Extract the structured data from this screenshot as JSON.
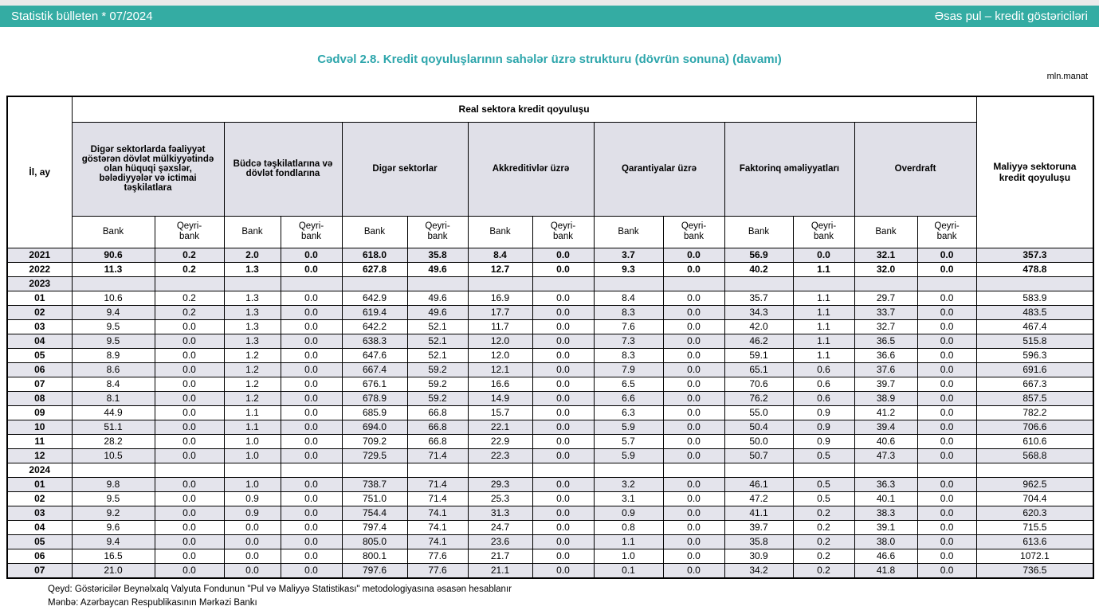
{
  "header_bar": {
    "left": "Statistik bülleten * 07/2024",
    "right": "Əsas pul – kredit göstəriciləri"
  },
  "title": "Cədvəl 2.8. Kredit qoyuluşlarının sahələr üzrə strukturu (dövrün sonuna) (davamı)",
  "unit_label": "mln.manat",
  "colors": {
    "bar_bg": "#34aca3",
    "title_color": "#2ea6ac",
    "row_alt_bg": "#e4e4ec",
    "group_bg": "#e0e0e8",
    "top_strip_bg": "#eaeaea"
  },
  "table": {
    "row_header": "İl, ay",
    "top_header": "Real sektora kredit qoyuluşu",
    "last_column": "Maliyyə sektoruna kredit qoyuluşu",
    "groups": [
      "Digər sektorlarda fəaliyyət göstərən dövlət mülkiyyətində olan hüquqi şəxslər, bələdiyyələr və ictimai təşkilatlara",
      "Büdcə təşkilatlarına və dövlət fondlarına",
      "Digər sektorlar",
      "Akkreditivlər üzrə",
      "Qarantiyalar üzrə",
      "Faktorinq əməliyyatları",
      "Overdraft"
    ],
    "subheaders": {
      "bank": "Bank",
      "nonbank": "Qeyri-\nbank"
    },
    "rows": [
      {
        "label": "2021",
        "type": "year",
        "values": [
          "90.6",
          "0.2",
          "2.0",
          "0.0",
          "618.0",
          "35.8",
          "8.4",
          "0.0",
          "3.7",
          "0.0",
          "56.9",
          "0.0",
          "32.1",
          "0.0",
          "357.3"
        ]
      },
      {
        "label": "2022",
        "type": "year",
        "values": [
          "11.3",
          "0.2",
          "1.3",
          "0.0",
          "627.8",
          "49.6",
          "12.7",
          "0.0",
          "9.3",
          "0.0",
          "40.2",
          "1.1",
          "32.0",
          "0.0",
          "478.8"
        ]
      },
      {
        "label": "2023",
        "type": "section",
        "values": [
          "",
          "",
          "",
          "",
          "",
          "",
          "",
          "",
          "",
          "",
          "",
          "",
          "",
          "",
          ""
        ]
      },
      {
        "label": "01",
        "type": "month",
        "values": [
          "10.6",
          "0.2",
          "1.3",
          "0.0",
          "642.9",
          "49.6",
          "16.9",
          "0.0",
          "8.4",
          "0.0",
          "35.7",
          "1.1",
          "29.7",
          "0.0",
          "583.9"
        ]
      },
      {
        "label": "02",
        "type": "month",
        "values": [
          "9.4",
          "0.2",
          "1.3",
          "0.0",
          "619.4",
          "49.6",
          "17.7",
          "0.0",
          "8.3",
          "0.0",
          "34.3",
          "1.1",
          "33.7",
          "0.0",
          "483.5"
        ]
      },
      {
        "label": "03",
        "type": "month",
        "values": [
          "9.5",
          "0.0",
          "1.3",
          "0.0",
          "642.2",
          "52.1",
          "11.7",
          "0.0",
          "7.6",
          "0.0",
          "42.0",
          "1.1",
          "32.7",
          "0.0",
          "467.4"
        ]
      },
      {
        "label": "04",
        "type": "month",
        "values": [
          "9.5",
          "0.0",
          "1.3",
          "0.0",
          "638.3",
          "52.1",
          "12.0",
          "0.0",
          "7.3",
          "0.0",
          "46.2",
          "1.1",
          "36.5",
          "0.0",
          "515.8"
        ]
      },
      {
        "label": "05",
        "type": "month",
        "values": [
          "8.9",
          "0.0",
          "1.2",
          "0.0",
          "647.6",
          "52.1",
          "12.0",
          "0.0",
          "8.3",
          "0.0",
          "59.1",
          "1.1",
          "36.6",
          "0.0",
          "596.3"
        ]
      },
      {
        "label": "06",
        "type": "month",
        "values": [
          "8.6",
          "0.0",
          "1.2",
          "0.0",
          "667.4",
          "59.2",
          "12.1",
          "0.0",
          "7.9",
          "0.0",
          "65.1",
          "0.6",
          "37.6",
          "0.0",
          "691.6"
        ]
      },
      {
        "label": "07",
        "type": "month",
        "values": [
          "8.4",
          "0.0",
          "1.2",
          "0.0",
          "676.1",
          "59.2",
          "16.6",
          "0.0",
          "6.5",
          "0.0",
          "70.6",
          "0.6",
          "39.7",
          "0.0",
          "667.3"
        ]
      },
      {
        "label": "08",
        "type": "month",
        "values": [
          "8.1",
          "0.0",
          "1.2",
          "0.0",
          "678.9",
          "59.2",
          "14.9",
          "0.0",
          "6.6",
          "0.0",
          "76.2",
          "0.6",
          "38.9",
          "0.0",
          "857.5"
        ]
      },
      {
        "label": "09",
        "type": "month",
        "values": [
          "44.9",
          "0.0",
          "1.1",
          "0.0",
          "685.9",
          "66.8",
          "15.7",
          "0.0",
          "6.3",
          "0.0",
          "55.0",
          "0.9",
          "41.2",
          "0.0",
          "782.2"
        ]
      },
      {
        "label": "10",
        "type": "month",
        "values": [
          "51.1",
          "0.0",
          "1.1",
          "0.0",
          "694.0",
          "66.8",
          "22.1",
          "0.0",
          "5.9",
          "0.0",
          "50.4",
          "0.9",
          "39.4",
          "0.0",
          "706.6"
        ]
      },
      {
        "label": "11",
        "type": "month",
        "values": [
          "28.2",
          "0.0",
          "1.0",
          "0.0",
          "709.2",
          "66.8",
          "22.9",
          "0.0",
          "5.7",
          "0.0",
          "50.0",
          "0.9",
          "40.6",
          "0.0",
          "610.6"
        ]
      },
      {
        "label": "12",
        "type": "month",
        "values": [
          "10.5",
          "0.0",
          "1.0",
          "0.0",
          "729.5",
          "71.4",
          "22.3",
          "0.0",
          "5.9",
          "0.0",
          "50.7",
          "0.5",
          "47.3",
          "0.0",
          "568.8"
        ]
      },
      {
        "label": "2024",
        "type": "section",
        "values": [
          "",
          "",
          "",
          "",
          "",
          "",
          "",
          "",
          "",
          "",
          "",
          "",
          "",
          "",
          ""
        ]
      },
      {
        "label": "01",
        "type": "month",
        "values": [
          "9.8",
          "0.0",
          "1.0",
          "0.0",
          "738.7",
          "71.4",
          "29.3",
          "0.0",
          "3.2",
          "0.0",
          "46.1",
          "0.5",
          "36.3",
          "0.0",
          "962.5"
        ]
      },
      {
        "label": "02",
        "type": "month",
        "values": [
          "9.5",
          "0.0",
          "0.9",
          "0.0",
          "751.0",
          "71.4",
          "25.3",
          "0.0",
          "3.1",
          "0.0",
          "47.2",
          "0.5",
          "40.1",
          "0.0",
          "704.4"
        ]
      },
      {
        "label": "03",
        "type": "month",
        "values": [
          "9.2",
          "0.0",
          "0.9",
          "0.0",
          "754.4",
          "74.1",
          "31.3",
          "0.0",
          "0.9",
          "0.0",
          "41.1",
          "0.2",
          "38.3",
          "0.0",
          "620.3"
        ]
      },
      {
        "label": "04",
        "type": "month",
        "values": [
          "9.6",
          "0.0",
          "0.0",
          "0.0",
          "797.4",
          "74.1",
          "24.7",
          "0.0",
          "0.8",
          "0.0",
          "39.7",
          "0.2",
          "39.1",
          "0.0",
          "715.5"
        ]
      },
      {
        "label": "05",
        "type": "month",
        "values": [
          "9.4",
          "0.0",
          "0.0",
          "0.0",
          "805.0",
          "74.1",
          "23.6",
          "0.0",
          "1.1",
          "0.0",
          "35.8",
          "0.2",
          "38.0",
          "0.0",
          "613.6"
        ]
      },
      {
        "label": "06",
        "type": "month",
        "values": [
          "16.5",
          "0.0",
          "0.0",
          "0.0",
          "800.1",
          "77.6",
          "21.7",
          "0.0",
          "1.0",
          "0.0",
          "30.9",
          "0.2",
          "46.6",
          "0.0",
          "1072.1"
        ]
      },
      {
        "label": "07",
        "type": "month",
        "values": [
          "21.0",
          "0.0",
          "0.0",
          "0.0",
          "797.6",
          "77.6",
          "21.1",
          "0.0",
          "0.1",
          "0.0",
          "34.2",
          "0.2",
          "41.8",
          "0.0",
          "736.5"
        ]
      }
    ]
  },
  "footnotes": {
    "note": "Qeyd: Göstəricilər Beynəlxalq Valyuta Fondunun \"Pul və Maliyyə Statistikası\" metodologiyasına əsasən hesablanır",
    "source": "Mənbə: Azərbaycan Respublikasının Mərkəzi Bankı"
  }
}
